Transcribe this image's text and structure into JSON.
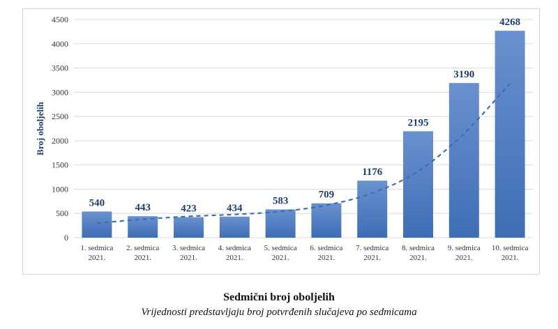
{
  "chart_data": {
    "type": "bar",
    "title": "Sedmični broj oboljelih",
    "subtitle": "Vrijednosti predstavljaju broj potvrđenih slučajeva po sedmicama",
    "ylabel": "Broj oboljelih",
    "xlabel": "",
    "ylim": [
      0,
      4500
    ],
    "yticks": [
      0,
      500,
      1000,
      1500,
      2000,
      2500,
      3000,
      3500,
      4000,
      4500
    ],
    "grid": true,
    "categories": [
      [
        "1. sedmica",
        "2021."
      ],
      [
        "2. sedmica",
        "2021."
      ],
      [
        "3. sedmica",
        "2021."
      ],
      [
        "4. sedmica",
        "2021."
      ],
      [
        "5. sedmica",
        "2021."
      ],
      [
        "6. sedmica",
        "2021."
      ],
      [
        "7. sedmica",
        "2021."
      ],
      [
        "8. sedmica",
        "2021."
      ],
      [
        "9. sedmica",
        "2021."
      ],
      [
        "10. sedmica",
        "2021."
      ]
    ],
    "values": [
      540,
      443,
      423,
      434,
      583,
      709,
      1176,
      2195,
      3190,
      4268
    ],
    "trendline": {
      "style": "dashed",
      "values": [
        300,
        380,
        440,
        480,
        540,
        670,
        920,
        1370,
        2150,
        3180
      ]
    },
    "colors": {
      "bar_top": "#6a91cf",
      "bar_bottom": "#3e6db5",
      "trend": "#3a6fb0",
      "label": "#1f3f6e"
    }
  }
}
